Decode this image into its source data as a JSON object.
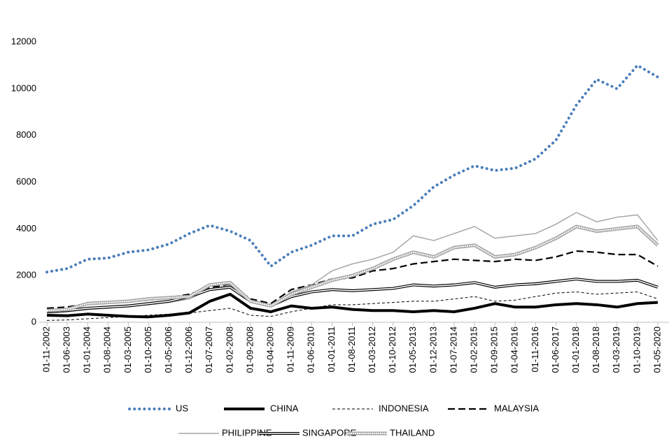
{
  "chart_data": {
    "type": "line",
    "categories": [
      "01-11-2002",
      "01-06-2003",
      "01-01-2004",
      "01-08-2004",
      "01-03-2005",
      "01-10-2005",
      "01-05-2006",
      "01-12-2006",
      "01-07-2007",
      "01-02-2008",
      "01-09-2008",
      "01-04-2009",
      "01-11-2009",
      "01-06-2010",
      "01-01-2011",
      "01-08-2011",
      "01-03-2012",
      "01-10-2012",
      "01-05-2013",
      "01-12-2013",
      "01-07-2014",
      "01-02-2015",
      "01-09-2015",
      "01-04-2016",
      "01-11-2016",
      "01-06-2017",
      "01-01-2018",
      "01-08-2018",
      "01-03-2019",
      "01-10-2019",
      "01-05-2020"
    ],
    "ylim": [
      0,
      13800
    ],
    "yticks": [
      0,
      2000,
      4000,
      6000,
      8000,
      10000,
      12000
    ],
    "grid": false,
    "legend": "bottom",
    "series": [
      {
        "name": "US",
        "color": "#4a7ebb",
        "style": "dotted",
        "values": [
          2150,
          2300,
          2700,
          2750,
          3000,
          3100,
          3350,
          3800,
          4150,
          3900,
          3500,
          2400,
          3000,
          3300,
          3700,
          3700,
          4200,
          4400,
          5000,
          5800,
          6300,
          6700,
          6500,
          6600,
          7000,
          7800,
          9300,
          10400,
          10000,
          11000,
          10500
        ]
      },
      {
        "name": "CHINA",
        "color": "#000000",
        "style": "thick",
        "values": [
          300,
          280,
          350,
          300,
          250,
          230,
          300,
          400,
          900,
          1200,
          600,
          450,
          700,
          600,
          650,
          550,
          500,
          500,
          450,
          500,
          450,
          600,
          800,
          650,
          650,
          750,
          800,
          750,
          650,
          800,
          850
        ]
      },
      {
        "name": "INDONESIA",
        "color": "#000000",
        "style": "dashed",
        "values": [
          80,
          100,
          150,
          200,
          250,
          300,
          350,
          400,
          500,
          600,
          300,
          250,
          450,
          600,
          750,
          750,
          800,
          850,
          900,
          900,
          1000,
          1100,
          900,
          950,
          1100,
          1250,
          1300,
          1200,
          1250,
          1300,
          1000
        ]
      },
      {
        "name": "MALAYSIA",
        "color": "#000000",
        "style": "long-dash",
        "values": [
          600,
          650,
          800,
          850,
          900,
          950,
          1050,
          1200,
          1500,
          1600,
          1000,
          800,
          1400,
          1600,
          1850,
          1900,
          2200,
          2300,
          2500,
          2600,
          2700,
          2650,
          2600,
          2700,
          2650,
          2800,
          3050,
          3000,
          2900,
          2900,
          2400
        ]
      },
      {
        "name": "PHILIPPINE",
        "color": "#a6a6a6",
        "style": "solid",
        "values": [
          400,
          450,
          550,
          600,
          700,
          750,
          850,
          1000,
          1400,
          1600,
          900,
          700,
          1300,
          1600,
          2200,
          2500,
          2700,
          3000,
          3700,
          3500,
          3800,
          4100,
          3600,
          3700,
          3800,
          4200,
          4700,
          4300,
          4500,
          4600,
          3500
        ]
      },
      {
        "name": "SINGAPORE",
        "color": "#000000",
        "style": "double",
        "values": [
          450,
          500,
          600,
          650,
          700,
          800,
          900,
          1100,
          1400,
          1500,
          900,
          700,
          1100,
          1300,
          1400,
          1350,
          1400,
          1450,
          1600,
          1550,
          1600,
          1700,
          1500,
          1600,
          1650,
          1750,
          1850,
          1750,
          1750,
          1800,
          1500
        ]
      },
      {
        "name": "THAILAND",
        "color": "#a6a6a6",
        "style": "double",
        "values": [
          500,
          550,
          800,
          850,
          900,
          1000,
          1050,
          1100,
          1600,
          1700,
          900,
          700,
          1200,
          1500,
          1800,
          2000,
          2300,
          2700,
          3000,
          2800,
          3200,
          3300,
          2800,
          2900,
          3200,
          3600,
          4100,
          3900,
          4000,
          4100,
          3300
        ]
      }
    ]
  }
}
